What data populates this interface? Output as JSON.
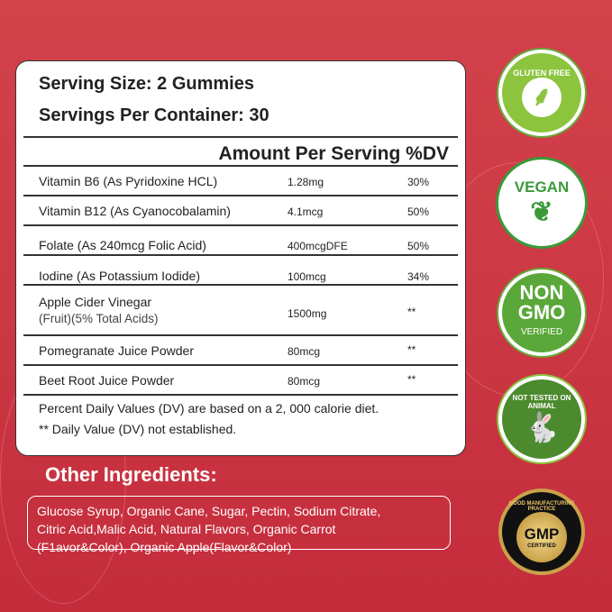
{
  "serving": {
    "size": "Serving Size: 2 Gummies",
    "per_container": "Servings Per Container: 30"
  },
  "header": "Amount Per Serving %DV",
  "rows": [
    {
      "name": "Vitamin B6 (As Pyridoxine HCL)",
      "amount": "1.28mg",
      "dv": "30%"
    },
    {
      "name": "Vitamin B12 (As Cyanocobalamin)",
      "amount": "4.1mcg",
      "dv": "50%"
    },
    {
      "name": "Folate (As 240mcg Folic Acid)",
      "amount": "400mcgDFE",
      "dv": "50%"
    },
    {
      "name": "Iodine (As Potassium Iodide)",
      "amount": "100mcg",
      "dv": "34%"
    },
    {
      "name": "Apple Cider Vinegar",
      "sub": "(Fruit)(5% Total Acids)",
      "amount": "1500mg",
      "dv": "**"
    },
    {
      "name": "Pomegranate Juice Powder",
      "amount": "80mcg",
      "dv": "**"
    },
    {
      "name": "Beet Root Juice Powder",
      "amount": "80mcg",
      "dv": "**"
    }
  ],
  "footnotes": [
    "Percent Daily Values (DV) are based on a 2, 000 calorie diet.",
    "** Daily Value (DV) not established."
  ],
  "other_ingredients": {
    "title": "Other Ingredients:",
    "lines": [
      "Glucose Syrup, Organic Cane, Sugar, Pectin, Sodium Citrate,",
      "Citric Acid,Malic Acid, Natural Flavors, Organic Carrot",
      "(F1avor&Color), Organic Apple(Flavor&Color)"
    ]
  },
  "badges": [
    {
      "text": "GLUTEN FREE",
      "icon": "wheat-icon",
      "color": "#8cc43e"
    },
    {
      "text": "VEGAN",
      "icon": "leaf-icon",
      "color": "#3a9a3a"
    },
    {
      "text": "NON GMO",
      "sub": "VERIFIED",
      "color": "#5aa83a"
    },
    {
      "text": "NOT TESTED ON ANIMAL",
      "icon": "rabbit-icon",
      "color": "#4c8a2e"
    },
    {
      "text": "GMP",
      "sub": "CERTIFIED",
      "ring": "GOOD MANUFACTURING PRACTICE",
      "color": "#c9a24a"
    }
  ]
}
